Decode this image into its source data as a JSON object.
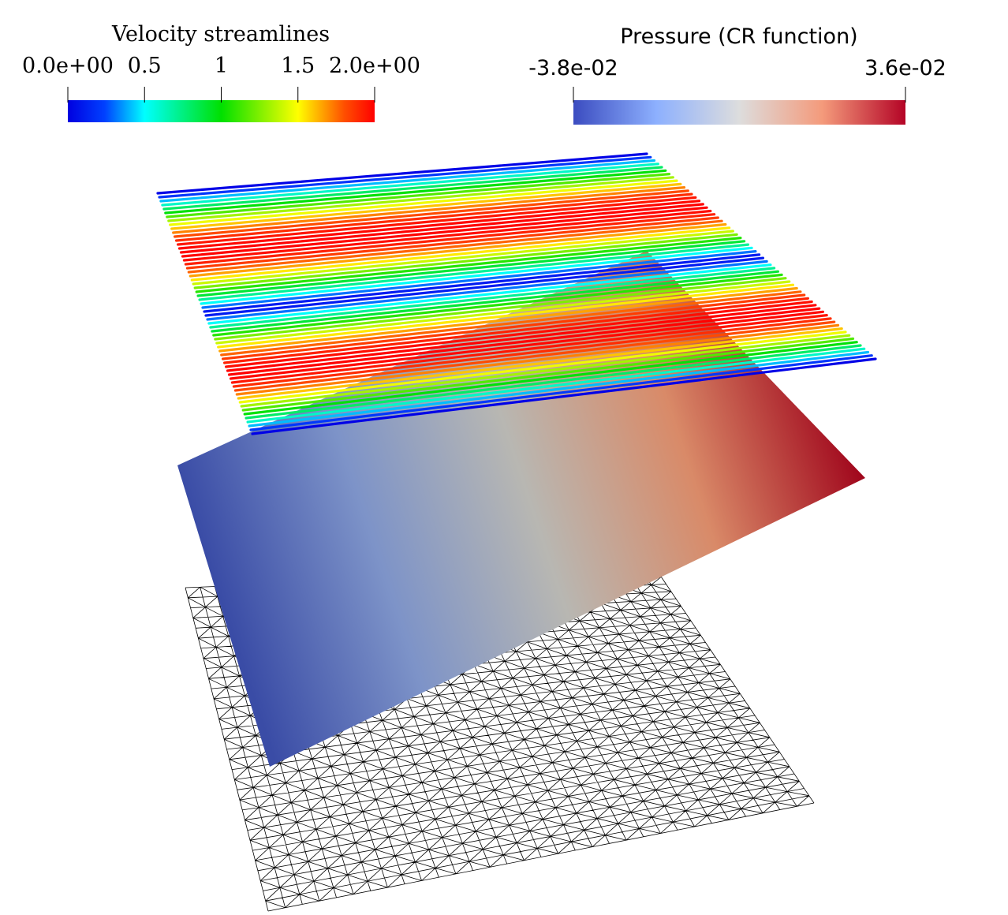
{
  "colorbars": [
    {
      "title": "Velocity streamlines",
      "range": [
        0,
        2
      ],
      "ticks": [
        {
          "value": 0,
          "label": "0.0e+00"
        },
        0.5,
        1,
        1.5,
        {
          "value": 2,
          "label": "2.0e+00"
        }
      ]
    },
    {
      "title": "Pressure (CR function)",
      "range": [
        -0.038,
        0.036
      ],
      "ticks": [
        {
          "value": -0.038,
          "label": "-3.8e-02"
        },
        {
          "value": 0.036,
          "label": "3.6e-02"
        }
      ]
    }
  ]
}
